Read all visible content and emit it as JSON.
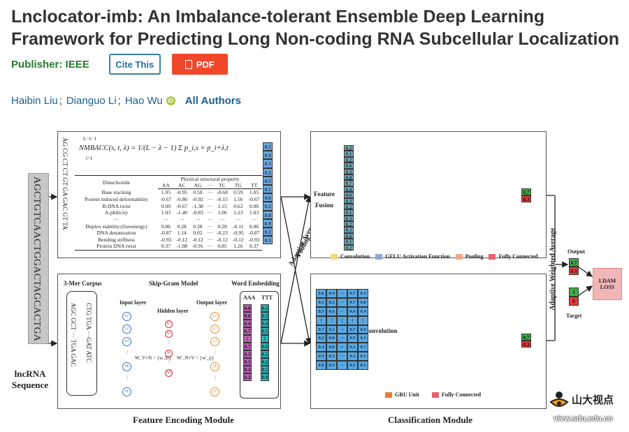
{
  "article": {
    "title": "Lnclocator-imb: An Imbalance-tolerant Ensemble Deep Learning Framework for Predicting Long Non-coding RNA Subcellular Localization",
    "publisher_label": "Publisher:",
    "publisher": "IEEE",
    "cite_label": "Cite This",
    "pdf_label": "PDF",
    "authors": [
      "Haibin Liu",
      "Dianguo Li",
      "Hao Wu"
    ],
    "author_sep": ";",
    "orcid": "iD",
    "all_authors": "All Authors"
  },
  "figure": {
    "sequence": "AGCTGTCAACTGGACTAGCACTGA",
    "lncrna_label_1": "lncRNA",
    "lncrna_label_2": "Sequence",
    "nmbacc": "NMBACC(s, t, λ) = 1/(L − λ − 1) Σ p_i,s × p_i+λ,t",
    "sum_top": "L−λ−1",
    "sum_bottom": "i=1",
    "dinucleotides_vertical": "AG CG CT CT GT GA GAC GT TA",
    "table": {
      "col0": "Dinucleotide",
      "group": "Physical structural property",
      "cols": [
        "AA",
        "AC",
        "AG",
        "···",
        "TC",
        "TG",
        "TT"
      ],
      "rows": [
        [
          "Base stacking",
          "1.05",
          "-0.95",
          "0.50",
          "···",
          "-0.68",
          "0.59",
          "1.05"
        ],
        [
          "Protein induced deformability",
          "-0.67",
          "-0.86",
          "-0.92",
          "···",
          "-0.15",
          "1.56",
          "-0.67"
        ],
        [
          "B-DNA twist",
          "0.00",
          "-0.67",
          "-1.38",
          "···",
          "1.15",
          "0.62",
          "0.00"
        ],
        [
          "A-philicity",
          "1.03",
          "-1.40",
          "-0.83",
          "···",
          "1.06",
          "1.23",
          "1.03"
        ],
        [
          "···",
          "···",
          "···",
          "···",
          "···",
          "···",
          "···",
          "···"
        ],
        [
          "Duplex stability:(freeenergy)",
          "0.86",
          "0.28",
          "0.28",
          "···",
          "0.28",
          "-0.11",
          "0.86"
        ],
        [
          "DNA denaturation",
          "-0.87",
          "1.14",
          "0.02",
          "···",
          "-0.23",
          "-0.95",
          "-0.87"
        ],
        [
          "Bending stiffness",
          "-0.93",
          "-0.12",
          "-0.12",
          "···",
          "-0.12",
          "-0.12",
          "-0.93"
        ],
        [
          "Protein DNA twist",
          "0.37",
          "-1.08",
          "-0.91",
          "···",
          "0.85",
          "1.26",
          "0.37"
        ]
      ]
    },
    "vec_right": [
      "0.5",
      "0.4",
      "0.3",
      "0.2",
      "0.5",
      "0.1",
      "0.6",
      "0.2",
      "0.8",
      "0.9",
      "0.2",
      "0.3"
    ],
    "fusion_vec": [
      "0.2",
      "0.1",
      "0.2",
      "0.6",
      "0.3",
      "0.8",
      "0.7",
      "0.4",
      "0.6",
      "0.3",
      "0.2",
      "0.1",
      "0.3",
      "0.2",
      "0.3",
      "0.6",
      "0.1",
      "0.2"
    ],
    "feature_label": "Feature",
    "fusion_label": "Fusion",
    "pooling_label_1": "Adaptive Average",
    "pooling_label_2": "Pooling",
    "weighted_label": "Adaptive Weighted Average",
    "out_top": [
      "0.7",
      "0.3"
    ],
    "out_bottom": [
      "0.7",
      "0.3"
    ],
    "output_label": "Output",
    "output_vec": [
      "0.7",
      "0.3"
    ],
    "target_label": "Target",
    "target_vec": [
      "1",
      "0"
    ],
    "ldam_1": "LDAM",
    "ldam_2": "LOSS",
    "legend_top": [
      "Convolution",
      "GELU Activation Function",
      "Pooling",
      "Fully Connected"
    ],
    "legend_bottom": [
      "GRU Unit",
      "Fully Connected"
    ],
    "corpus_label": "3-Mer Corpus",
    "corpus_col1": "AGC GCT ··· TGA GAC",
    "corpus_col2": "CTG TGA ···GAT ATC",
    "skipgram_label": "Skip-Gram Model",
    "input_layer": "Input layer",
    "hidden_layer": "Hidden layer",
    "output_layer": "Output layer",
    "w_left": "W_V×N = {w_ki}",
    "w_right": "W'_N×V = {w'_ij}",
    "x_nodes": [
      "x1",
      "x2",
      "x3",
      "⋮",
      "xk",
      "⋮",
      "xv"
    ],
    "h_nodes": [
      "h1",
      "h2",
      "⋮",
      "hi",
      "⋮",
      "hN"
    ],
    "y_nodes": [
      "y1",
      "y2",
      "y3",
      "⋮",
      "yk",
      "⋮",
      "yv"
    ],
    "embedding_label": "Word Embedding",
    "emb_col1_head": "AAA",
    "emb_col2_head": "TTT",
    "emb_col1": [
      "0.8",
      "0.6",
      "0.4",
      "0.7",
      "⋮",
      "0.7",
      "0.3",
      "0.1",
      "0.4",
      "0.2"
    ],
    "emb_col2": [
      "0.1",
      "0.3",
      "0.4",
      "0.5",
      "⋮",
      "0.6",
      "0.1",
      "0.2",
      "0.5",
      "0.9"
    ],
    "grid_rows": [
      [
        "0.6",
        "0.4",
        "···",
        "0.7",
        "0.1"
      ],
      [
        "0.2",
        "0.2",
        "···",
        "0.7",
        "0.8"
      ],
      [
        "0.3",
        "0.6",
        "···",
        "0.4",
        "0.4"
      ],
      [
        "⋮",
        "⋮",
        "⋮",
        "⋮",
        "⋮"
      ],
      [
        "0.7",
        "0.5",
        "···",
        "0.7",
        "0.9"
      ],
      [
        "0.2",
        "0.8",
        "···",
        "0.5",
        "0.3"
      ],
      [
        "0.4",
        "0.8",
        "···",
        "0.1",
        "0.7"
      ],
      [
        "0.9",
        "0.2",
        "···",
        "0.2",
        "0.1"
      ],
      [
        "0.8",
        "0.5",
        "···",
        "0.2",
        "0.3"
      ]
    ],
    "convolution_label": "Convolution",
    "feature_module": "Feature Encoding Module",
    "class_module": "Classification Module",
    "watermark_cn": "山大视点",
    "watermark_url": "view.sdu.edu.cn"
  },
  "colors": {
    "title": "#333333",
    "publisher": "#237a2e",
    "cite_border": "#3b7fa8",
    "pdf_bg": "#f0472b",
    "link": "#1a5f94",
    "conv": "#f5d77a",
    "gelu": "#8fa6d8",
    "pool": "#f3a88a",
    "fc": "#e9636b",
    "gru": "#ee7d34"
  }
}
